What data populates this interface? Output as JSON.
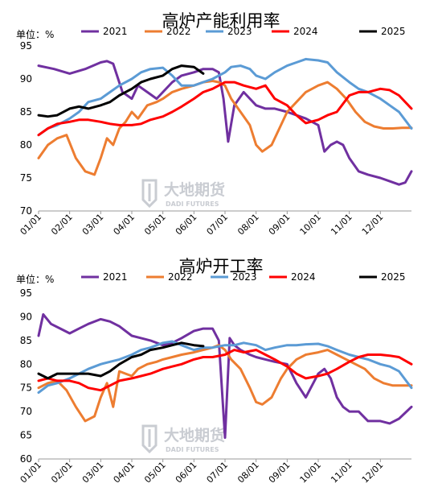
{
  "watermark": {
    "cn": "大地期货",
    "en": "DADI FUTURES"
  },
  "chart_data": [
    {
      "type": "line",
      "title": "高炉产能利用率",
      "unit_label": "单位：%",
      "ylim": [
        70,
        95
      ],
      "yticks": [
        70,
        75,
        80,
        85,
        90,
        95
      ],
      "xticks": [
        "01/01",
        "02/01",
        "03/01",
        "04/01",
        "05/01",
        "06/01",
        "07/01",
        "08/01",
        "09/01",
        "10/01",
        "11/01",
        "12/01"
      ],
      "legend_position": "top",
      "series": [
        {
          "name": "2021",
          "color": "#7030a0",
          "x": [
            0,
            0.5,
            1,
            1.5,
            2,
            2.2,
            2.4,
            2.7,
            3,
            3.2,
            3.5,
            3.8,
            4,
            4.3,
            4.6,
            5,
            5.3,
            5.6,
            5.8,
            5.95,
            6.1,
            6.3,
            6.6,
            7,
            7.3,
            7.6,
            8,
            8.3,
            8.6,
            9,
            9.2,
            9.4,
            9.6,
            9.8,
            10,
            10.3,
            10.6,
            11,
            11.3,
            11.6,
            11.8,
            12
          ],
          "y": [
            92,
            91.5,
            90.8,
            91.5,
            92.5,
            92.7,
            92.3,
            88,
            87,
            89,
            88,
            87,
            88,
            89.5,
            90.5,
            91,
            91.5,
            91.5,
            91,
            87,
            80.5,
            86,
            88,
            86,
            85.5,
            85.5,
            85,
            84.5,
            84,
            83,
            79,
            80,
            80.5,
            80,
            78,
            76,
            75.5,
            75,
            74.5,
            74,
            74.3,
            76
          ]
        },
        {
          "name": "2022",
          "color": "#ed7d31",
          "x": [
            0,
            0.3,
            0.6,
            0.9,
            1.2,
            1.5,
            1.8,
            2,
            2.2,
            2.4,
            2.6,
            2.8,
            3,
            3.2,
            3.5,
            3.8,
            4,
            4.3,
            4.6,
            5,
            5.3,
            5.6,
            5.8,
            6,
            6.2,
            6.5,
            6.8,
            7,
            7.2,
            7.5,
            7.8,
            8,
            8.3,
            8.6,
            9,
            9.3,
            9.6,
            9.9,
            10.2,
            10.5,
            10.8,
            11.1,
            11.4,
            11.7,
            12
          ],
          "y": [
            78,
            80,
            81,
            81.5,
            78,
            76,
            75.5,
            78,
            81,
            80,
            82.5,
            83.5,
            85,
            84,
            86,
            86.5,
            87,
            88,
            88.5,
            89,
            89.5,
            89.7,
            89.5,
            89,
            87,
            85,
            83,
            80,
            79,
            80,
            83,
            85,
            86.5,
            88,
            89,
            89.5,
            88.5,
            87,
            85,
            83.5,
            82.8,
            82.5,
            82.5,
            82.6,
            82.6
          ]
        },
        {
          "name": "2023",
          "color": "#5b9bd5",
          "x": [
            0,
            0.3,
            0.6,
            1,
            1.3,
            1.6,
            2,
            2.3,
            2.6,
            3,
            3.3,
            3.6,
            4,
            4.3,
            4.6,
            5,
            5.3,
            5.6,
            6,
            6.2,
            6.5,
            6.8,
            7,
            7.3,
            7.6,
            8,
            8.3,
            8.6,
            9,
            9.3,
            9.6,
            10,
            10.3,
            10.6,
            11,
            11.3,
            11.6,
            12
          ],
          "y": [
            81.5,
            82.5,
            83,
            84,
            85,
            86.5,
            87,
            88,
            89,
            90,
            91,
            91.5,
            91.7,
            90.5,
            89,
            89,
            89.5,
            90,
            91,
            91.8,
            92,
            91.5,
            90.5,
            90,
            91,
            92,
            92.5,
            93,
            92.8,
            92.5,
            91,
            89.5,
            88.5,
            88,
            87,
            86,
            85,
            82.5
          ]
        },
        {
          "name": "2024",
          "color": "#ff0000",
          "x": [
            0,
            0.3,
            0.6,
            1,
            1.3,
            1.6,
            2,
            2.3,
            2.6,
            3,
            3.3,
            3.6,
            4,
            4.3,
            4.6,
            5,
            5.3,
            5.6,
            6,
            6.3,
            6.6,
            7,
            7.3,
            7.6,
            8,
            8.3,
            8.6,
            9,
            9.3,
            9.6,
            10,
            10.3,
            10.6,
            11,
            11.3,
            11.6,
            12
          ],
          "y": [
            81.5,
            82.5,
            83.2,
            83.5,
            83.8,
            83.8,
            83.5,
            83.2,
            83,
            83,
            83.2,
            83.8,
            84.3,
            85,
            85.8,
            87,
            88,
            88.5,
            89.5,
            89.5,
            89,
            88.5,
            89,
            87,
            86,
            84.5,
            83.3,
            83.8,
            84.5,
            85,
            87.5,
            88,
            88,
            88.5,
            88.3,
            87.5,
            85.5
          ]
        },
        {
          "name": "2025",
          "color": "#000000",
          "x": [
            0,
            0.3,
            0.6,
            1,
            1.3,
            1.6,
            2,
            2.3,
            2.6,
            3,
            3.3,
            3.6,
            4,
            4.3,
            4.6,
            5,
            5.3
          ],
          "y": [
            84.5,
            84.3,
            84.5,
            85.5,
            85.8,
            85.5,
            86,
            86.5,
            87.5,
            88.5,
            89.5,
            90,
            90.5,
            91.5,
            92,
            91.8,
            90.8
          ]
        }
      ]
    },
    {
      "type": "line",
      "title": "高炉开工率",
      "unit_label": "单位：%",
      "ylim": [
        60,
        95
      ],
      "yticks": [
        60,
        65,
        70,
        75,
        80,
        85,
        90,
        95
      ],
      "xticks": [
        "01/01",
        "02/01",
        "03/01",
        "04/01",
        "05/01",
        "06/01",
        "07/01",
        "08/01",
        "09/01",
        "10/01",
        "11/01",
        "12/01"
      ],
      "legend_position": "top",
      "series": [
        {
          "name": "2021",
          "color": "#7030a0",
          "x": [
            0,
            0.15,
            0.4,
            0.7,
            1,
            1.3,
            1.6,
            2,
            2.3,
            2.6,
            3,
            3.3,
            3.6,
            4,
            4.3,
            4.6,
            5,
            5.3,
            5.6,
            5.8,
            6,
            6.15,
            6.3,
            6.5,
            6.8,
            7,
            7.3,
            7.6,
            8,
            8.3,
            8.6,
            9,
            9.2,
            9.4,
            9.6,
            9.8,
            10,
            10.3,
            10.6,
            11,
            11.3,
            11.6,
            12
          ],
          "y": [
            86,
            90.5,
            88.5,
            87.5,
            86.5,
            87.5,
            88.5,
            89.5,
            89,
            88,
            86,
            85.5,
            85,
            84,
            84.5,
            85.5,
            87,
            87.5,
            87.5,
            85,
            64.5,
            85.5,
            84,
            83,
            82,
            81.5,
            81,
            80.5,
            80,
            76,
            73,
            78,
            79,
            77,
            73,
            71,
            70,
            70,
            68,
            68,
            67.5,
            68.5,
            71
          ]
        },
        {
          "name": "2022",
          "color": "#ed7d31",
          "x": [
            0,
            0.3,
            0.6,
            0.9,
            1.2,
            1.5,
            1.8,
            2,
            2.2,
            2.4,
            2.6,
            2.8,
            3,
            3.2,
            3.5,
            3.8,
            4,
            4.3,
            4.6,
            5,
            5.3,
            5.6,
            5.8,
            6,
            6.2,
            6.5,
            6.8,
            7,
            7.2,
            7.5,
            7.8,
            8,
            8.3,
            8.6,
            9,
            9.3,
            9.6,
            9.9,
            10.2,
            10.5,
            10.8,
            11.1,
            11.4,
            11.7,
            12
          ],
          "y": [
            75,
            76,
            76.5,
            74.5,
            71,
            68,
            69,
            73,
            76,
            71,
            78.5,
            78,
            77.5,
            79,
            80,
            80.5,
            81,
            81.5,
            82,
            82.5,
            83,
            83.5,
            84,
            83,
            81,
            79,
            75,
            72,
            71.5,
            73,
            77,
            79,
            81,
            82,
            82.5,
            83,
            82,
            81,
            80,
            79,
            77,
            76,
            75.5,
            75.5,
            75.5
          ]
        },
        {
          "name": "2023",
          "color": "#5b9bd5",
          "x": [
            0,
            0.3,
            0.6,
            1,
            1.3,
            1.6,
            2,
            2.3,
            2.6,
            3,
            3.3,
            3.6,
            4,
            4.3,
            4.6,
            5,
            5.3,
            5.6,
            6,
            6.3,
            6.6,
            7,
            7.3,
            7.6,
            8,
            8.3,
            8.6,
            9,
            9.3,
            9.6,
            10,
            10.3,
            10.6,
            11,
            11.3,
            11.6,
            12
          ],
          "y": [
            74,
            75.5,
            76,
            77,
            78,
            79,
            80,
            80.5,
            81,
            82,
            83,
            83.5,
            84.5,
            84.8,
            84,
            83,
            83.5,
            83.5,
            84,
            84,
            84.5,
            84,
            83,
            83.5,
            84,
            84,
            84.2,
            84.3,
            83.8,
            83,
            82,
            81.5,
            81,
            80,
            79.5,
            78.5,
            75
          ]
        },
        {
          "name": "2024",
          "color": "#ff0000",
          "x": [
            0,
            0.3,
            0.6,
            1,
            1.3,
            1.6,
            2,
            2.3,
            2.6,
            3,
            3.3,
            3.6,
            4,
            4.3,
            4.6,
            5,
            5.3,
            5.6,
            6,
            6.3,
            6.6,
            7,
            7.3,
            7.6,
            8,
            8.3,
            8.6,
            9,
            9.3,
            9.6,
            10,
            10.3,
            10.6,
            11,
            11.3,
            11.6,
            12
          ],
          "y": [
            76.5,
            77,
            76.5,
            76.5,
            76,
            75,
            74.5,
            75.5,
            76.5,
            77,
            77.5,
            78,
            79,
            79.5,
            80,
            81,
            81.5,
            81.5,
            82,
            83,
            82.5,
            83,
            82,
            81,
            79.5,
            78,
            77,
            77.5,
            78,
            79,
            80.5,
            81.5,
            82,
            82,
            81.8,
            81.5,
            80
          ]
        },
        {
          "name": "2025",
          "color": "#000000",
          "x": [
            0,
            0.3,
            0.6,
            1,
            1.3,
            1.6,
            2,
            2.3,
            2.6,
            3,
            3.3,
            3.6,
            4,
            4.3,
            4.6,
            5,
            5.3
          ],
          "y": [
            78,
            77,
            78,
            78,
            78,
            78,
            77.5,
            78.5,
            80,
            81.5,
            82,
            83,
            83.5,
            84,
            84.5,
            84,
            83.8
          ]
        }
      ]
    }
  ]
}
